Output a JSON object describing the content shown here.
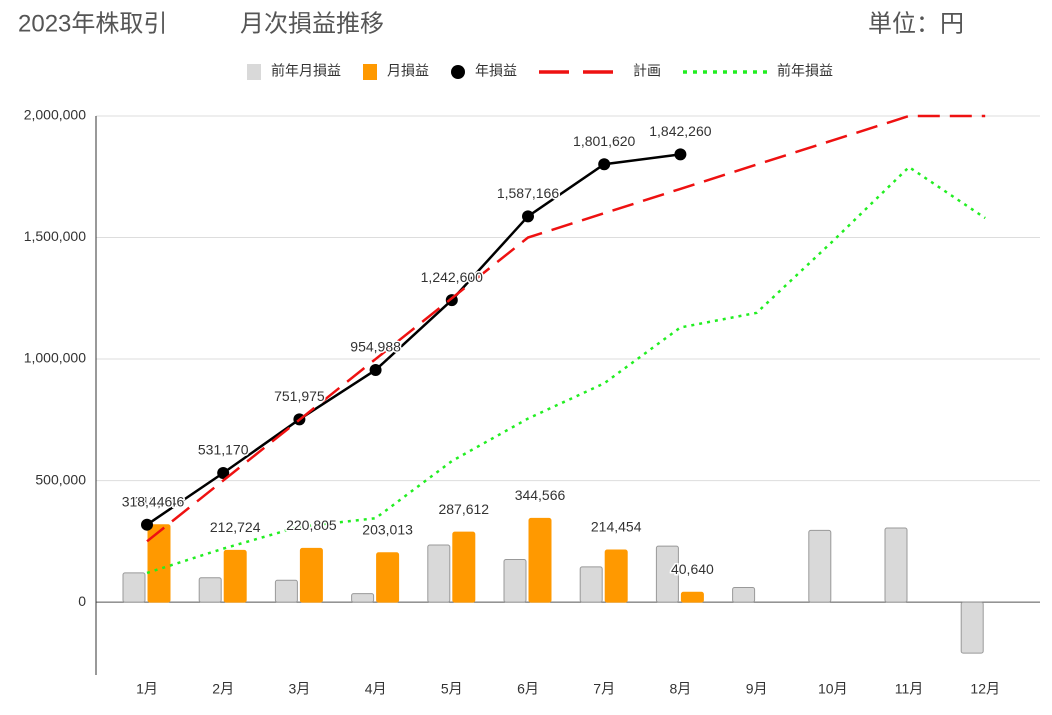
{
  "header": {
    "title": "2023年株取引",
    "subtitle": "月次損益推移",
    "unit": "単位：円"
  },
  "chart_data": {
    "type": "combo",
    "categories": [
      "1月",
      "2月",
      "3月",
      "4月",
      "5月",
      "6月",
      "7月",
      "8月",
      "9月",
      "10月",
      "11月",
      "12月"
    ],
    "ylim": [
      -300000,
      2000000
    ],
    "yticks": [
      0,
      {
        "value": 500000,
        "label": "500,000"
      },
      {
        "value": 1000000,
        "label": "1,000,000"
      },
      {
        "value": 1500000,
        "label": "1,500,000"
      },
      {
        "value": 2000000,
        "label": "2,000,000"
      }
    ],
    "grid": true,
    "series": [
      {
        "name": "前年月損益",
        "type": "bar",
        "color": "#d9d9d9",
        "values": [
          120000,
          100000,
          90000,
          35000,
          235000,
          175000,
          145000,
          230000,
          60000,
          295000,
          305000,
          -210000
        ]
      },
      {
        "name": "月損益",
        "type": "bar",
        "color": "#ff9900",
        "values": [
          318446,
          212724,
          220805,
          203013,
          287612,
          344566,
          214454,
          40640,
          null,
          null,
          null,
          null
        ],
        "value_labels": [
          "318,446",
          "212,724",
          "220,805",
          "203,013",
          "287,612",
          "344,566",
          "214,454",
          "40,640",
          null,
          null,
          null,
          null
        ]
      },
      {
        "name": "年損益",
        "type": "line",
        "color": "#000000",
        "style": "solid",
        "marker": true,
        "values": [
          318446,
          531170,
          751975,
          954988,
          1242600,
          1587166,
          1801620,
          1842260,
          null,
          null,
          null,
          null
        ],
        "value_labels": [
          "318,446",
          "531,170",
          "751,975",
          "954,988",
          "1,242,600",
          "1,587,166",
          "1,801,620",
          "1,842,260",
          null,
          null,
          null,
          null
        ]
      },
      {
        "name": "計画",
        "type": "line",
        "color": "#ee1111",
        "style": "dashed",
        "marker": false,
        "values": [
          250000,
          500000,
          750000,
          1000000,
          1250000,
          1500000,
          1600000,
          1700000,
          1800000,
          1900000,
          2000000,
          2000000
        ]
      },
      {
        "name": "前年損益",
        "type": "line",
        "color": "#22ee22",
        "style": "dotted",
        "marker": false,
        "values": [
          120000,
          220000,
          310000,
          345000,
          580000,
          755000,
          900000,
          1130000,
          1190000,
          1485000,
          1790000,
          1580000
        ]
      }
    ]
  }
}
